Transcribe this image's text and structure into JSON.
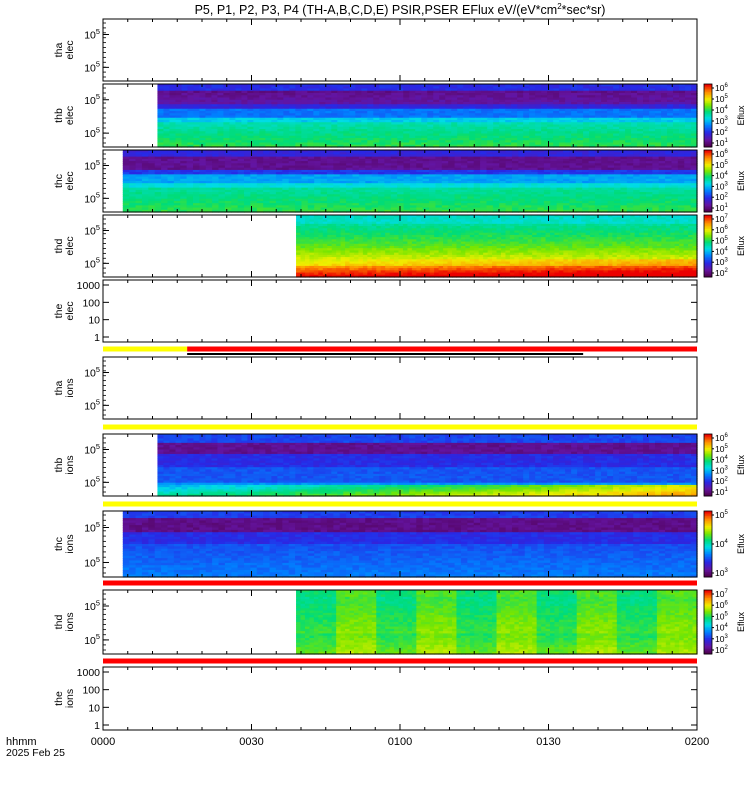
{
  "chart_data": {
    "type": "heatmap",
    "title_main": "P5, P1, P2, P3, P4 (TH-A,B,C,D,E) PSIR,PSER EFlux eV/(eV*cm",
    "title_sup": "2",
    "title_end": "*sec*sr)",
    "x_axis": {
      "label_line1": "hhmm",
      "label_line2": "2025 Feb 25",
      "range": [
        "0000",
        "0200"
      ],
      "ticks": [
        "0000",
        "0030",
        "0100",
        "0130",
        "0200"
      ]
    },
    "color_bar_label": "Eflux",
    "panels": [
      {
        "label1": "tha",
        "label2": "elec",
        "y_ticks": [
          "10^5",
          "10^5"
        ],
        "has_data": false
      },
      {
        "label1": "thb",
        "label2": "elec",
        "y_ticks": [
          "10^5",
          "10^5"
        ],
        "has_data": true,
        "data_start": "0011",
        "profile": "electron-b",
        "colorbar_ticks": [
          "10^6",
          "10^5",
          "10^4",
          "10^3",
          "10^2",
          "10^1"
        ]
      },
      {
        "label1": "thc",
        "label2": "elec",
        "y_ticks": [
          "10^5",
          "10^5"
        ],
        "has_data": true,
        "data_start": "0004",
        "profile": "electron-c",
        "colorbar_ticks": [
          "10^6",
          "10^5",
          "10^4",
          "10^3",
          "10^2",
          "10^1"
        ]
      },
      {
        "label1": "thd",
        "label2": "elec",
        "y_ticks": [
          "10^5",
          "10^5"
        ],
        "has_data": true,
        "data_start": "0039",
        "profile": "electron-d",
        "colorbar_ticks": [
          "10^7",
          "10^6",
          "10^5",
          "10^4",
          "10^3",
          "10^2"
        ]
      },
      {
        "label1": "the",
        "label2": "elec",
        "y_ticks": [
          "1000",
          "100",
          "10",
          "1"
        ],
        "has_data": false
      },
      {
        "label1": "tha",
        "label2": "ions",
        "y_ticks": [
          "10^5",
          "10^5"
        ],
        "has_data": false
      },
      {
        "label1": "thb",
        "label2": "ions",
        "y_ticks": [
          "10^5",
          "10^5"
        ],
        "has_data": true,
        "data_start": "0011",
        "profile": "ion-b",
        "colorbar_ticks": [
          "10^6",
          "10^5",
          "10^4",
          "10^3",
          "10^2",
          "10^1"
        ]
      },
      {
        "label1": "thc",
        "label2": "ions",
        "y_ticks": [
          "10^5",
          "10^5"
        ],
        "has_data": true,
        "data_start": "0004",
        "profile": "ion-c",
        "colorbar_ticks": [
          "10^5",
          "10^4",
          "10^3"
        ]
      },
      {
        "label1": "thd",
        "label2": "ions",
        "y_ticks": [
          "10^5",
          "10^5"
        ],
        "has_data": true,
        "data_start": "0039",
        "profile": "ion-d",
        "colorbar_ticks": [
          "10^7",
          "10^6",
          "10^5",
          "10^4",
          "10^3",
          "10^2"
        ]
      },
      {
        "label1": "the",
        "label2": "ions",
        "y_ticks": [
          "1000",
          "100",
          "10",
          "1"
        ],
        "has_data": false
      }
    ],
    "status_bars": [
      {
        "after_panel": 4,
        "segments": [
          {
            "from": "0000",
            "to": "0017",
            "color": "#ffff00"
          },
          {
            "from": "0017",
            "to": "0200",
            "color": "#ff0000"
          }
        ],
        "lower_segment": {
          "from": "0017",
          "to": "0137",
          "color": "#000000"
        }
      },
      {
        "after_panel": 5,
        "segments": [
          {
            "from": "0000",
            "to": "0200",
            "color": "#ffff00"
          }
        ]
      },
      {
        "after_panel": 6,
        "segments": [
          {
            "from": "0000",
            "to": "0200",
            "color": "#ffff00"
          }
        ]
      },
      {
        "after_panel": 7,
        "segments": [
          {
            "from": "0000",
            "to": "0200",
            "color": "#ff0000"
          }
        ]
      },
      {
        "after_panel": 8,
        "segments": [
          {
            "from": "0000",
            "to": "0200",
            "color": "#ff0000"
          }
        ]
      }
    ]
  }
}
